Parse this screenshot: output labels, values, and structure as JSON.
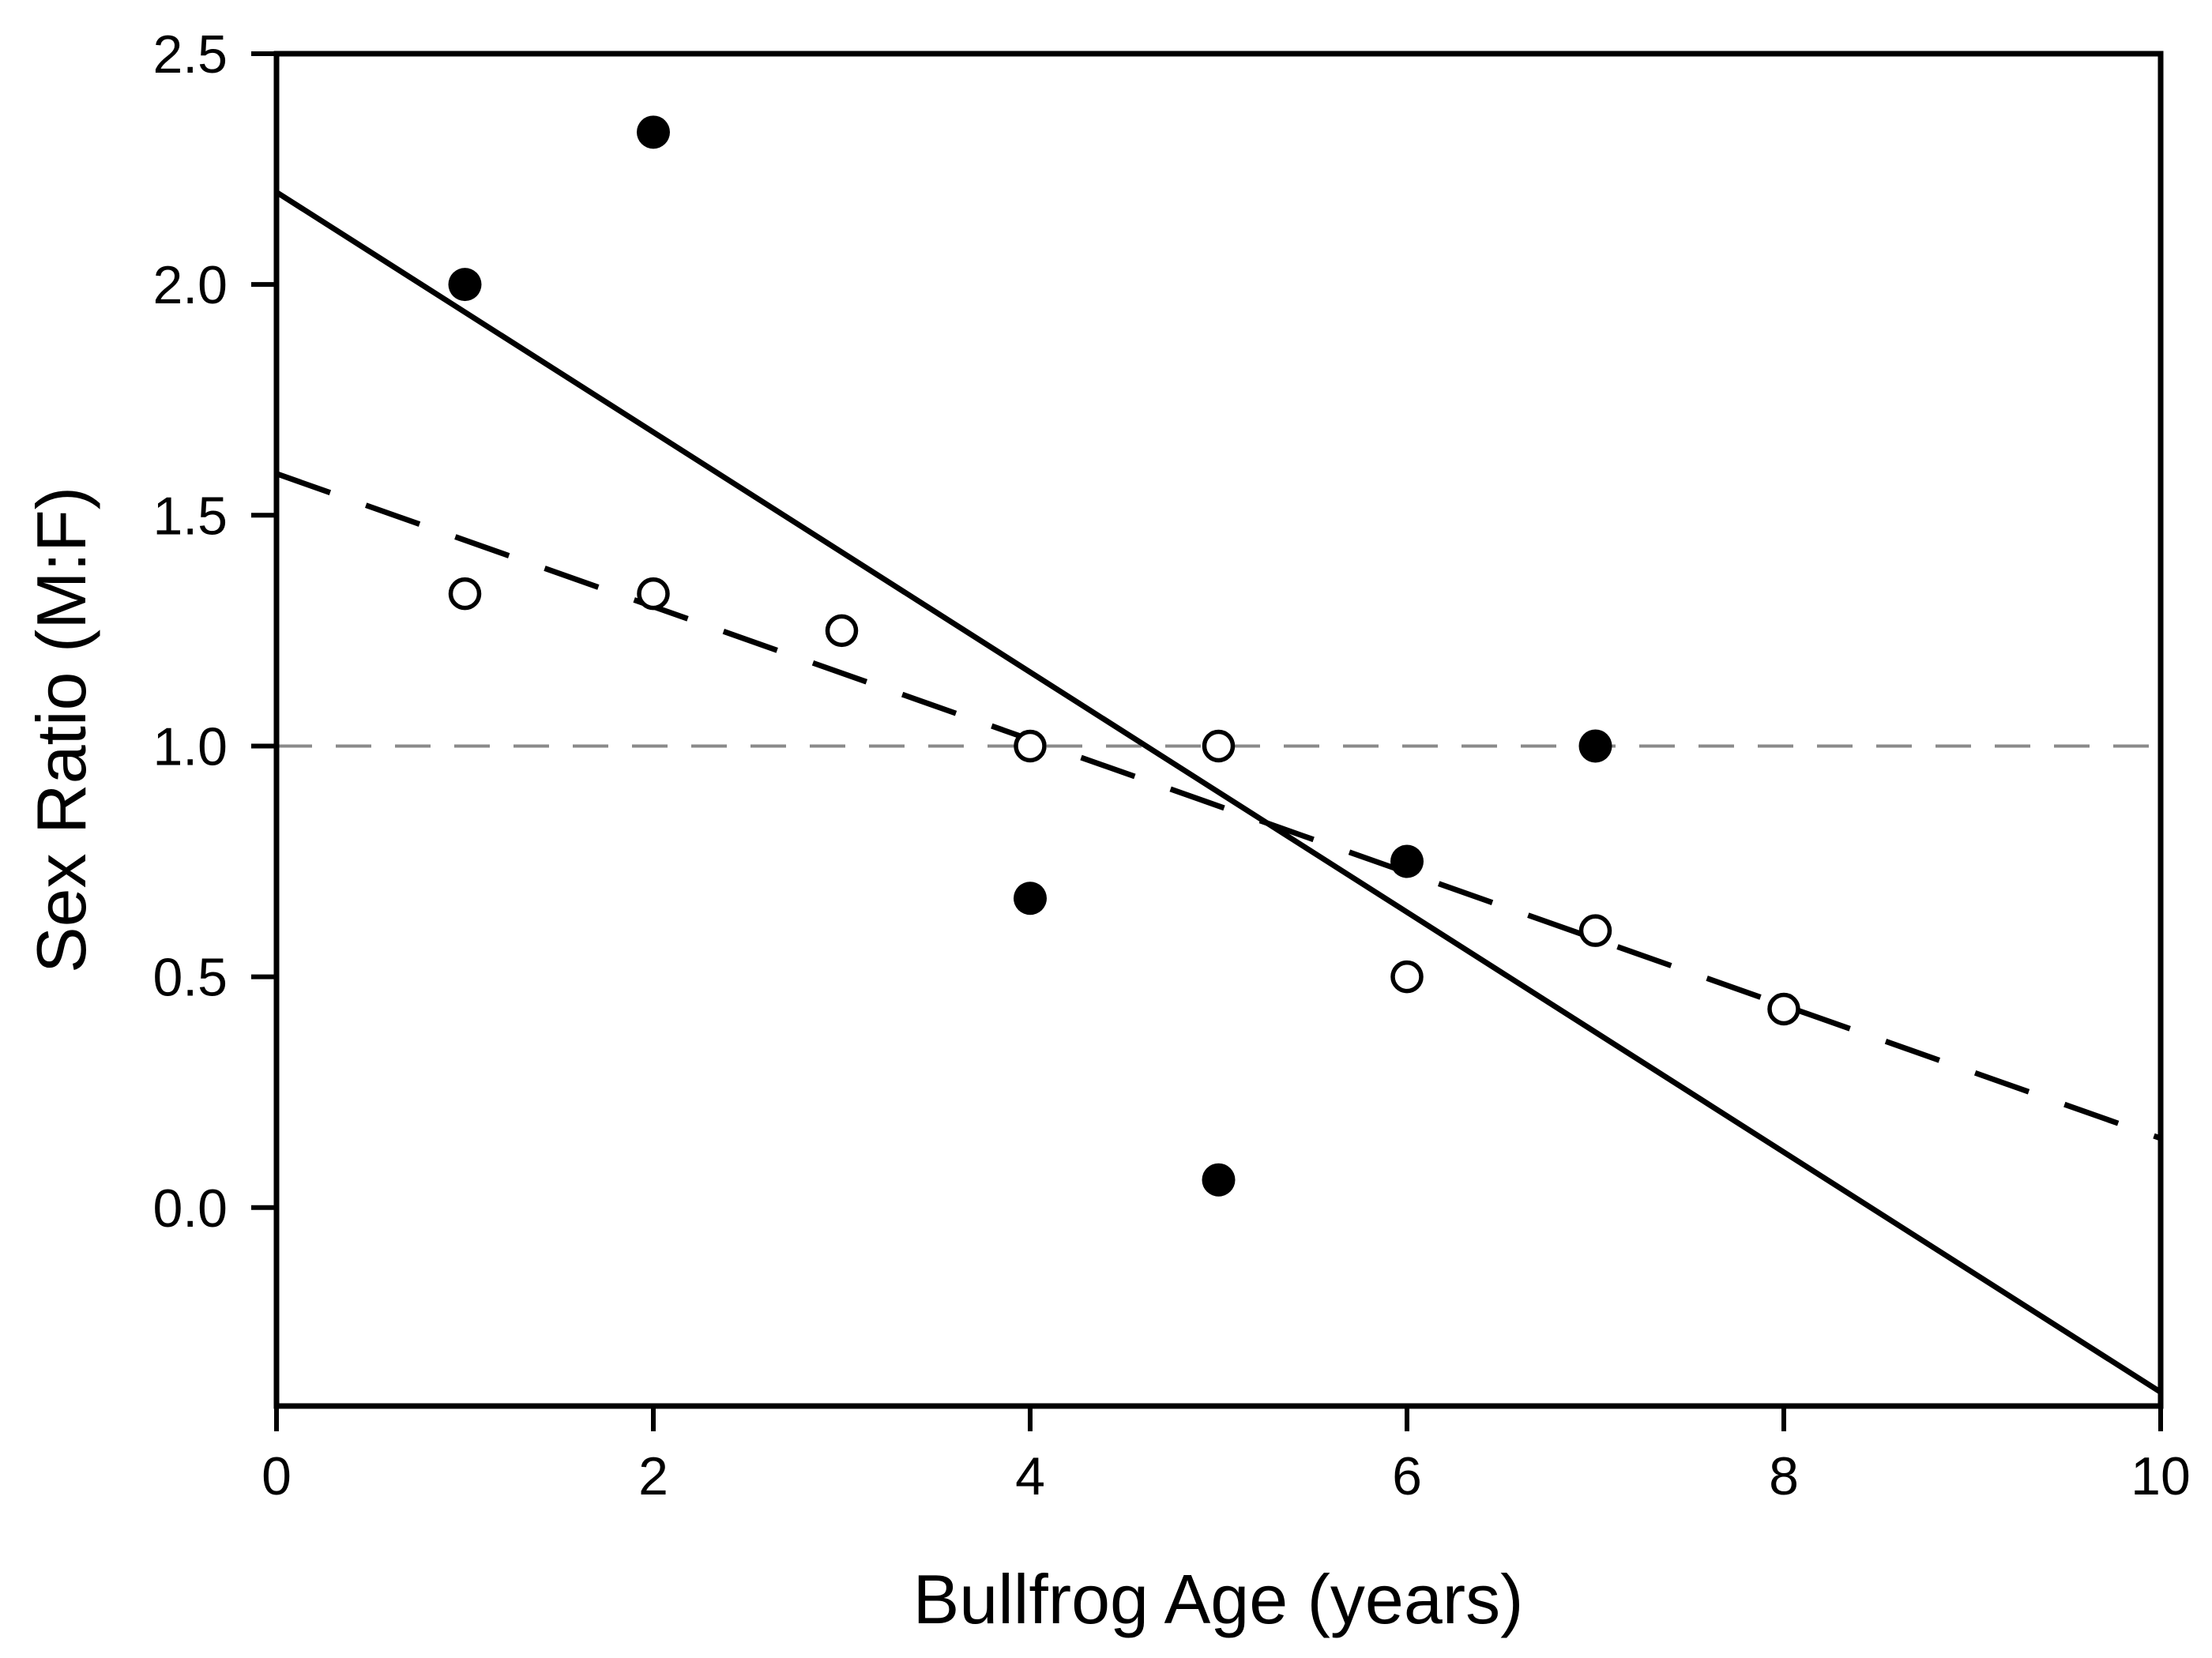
{
  "figure": {
    "background": "#ffffff",
    "frame_color": "#000000"
  },
  "chart_data": {
    "type": "scatter",
    "title": "",
    "xlabel": "Bullfrog Age (years)",
    "ylabel": "Sex Ratio (M:F)",
    "xlim": [
      0,
      10
    ],
    "ylim": [
      -0.43,
      2.5
    ],
    "grid": false,
    "legend_position": "none",
    "x_ticks": [
      {
        "value": 0,
        "label": "0"
      },
      {
        "value": 2,
        "label": "2"
      },
      {
        "value": 4,
        "label": "4"
      },
      {
        "value": 6,
        "label": "6"
      },
      {
        "value": 8,
        "label": "8"
      },
      {
        "value": 10,
        "label": "10"
      }
    ],
    "y_ticks": [
      {
        "value": 0.0,
        "label": "0.0"
      },
      {
        "value": 0.5,
        "label": "0.5"
      },
      {
        "value": 1.0,
        "label": "1.0"
      },
      {
        "value": 1.5,
        "label": "1.5"
      },
      {
        "value": 2.0,
        "label": "2.0"
      },
      {
        "value": 2.5,
        "label": "2.5"
      }
    ],
    "series": [
      {
        "name": "filled-circles",
        "marker": "filled-circle",
        "marker_color": "#000000",
        "points": [
          [
            1,
            2.0
          ],
          [
            2,
            2.33
          ],
          [
            4,
            0.67
          ],
          [
            5,
            0.06
          ],
          [
            6,
            0.75
          ],
          [
            7,
            1.0
          ]
        ]
      },
      {
        "name": "open-circles",
        "marker": "open-circle",
        "marker_color": "#000000",
        "marker_fill": "#ffffff",
        "points": [
          [
            1,
            1.33
          ],
          [
            2,
            1.33
          ],
          [
            3,
            1.25
          ],
          [
            4,
            1.0
          ],
          [
            5,
            1.0
          ],
          [
            6,
            0.5
          ],
          [
            7,
            0.6
          ],
          [
            8,
            0.43
          ]
        ]
      }
    ],
    "lines": [
      {
        "name": "parity-reference-line",
        "style": "fine-dash",
        "color": "#8a8a8a",
        "width": 4,
        "from": [
          0,
          1.0
        ],
        "to": [
          10,
          1.0
        ]
      },
      {
        "name": "dashed-regression-line",
        "style": "long-dash",
        "color": "#000000",
        "width": 7,
        "from": [
          0,
          1.59
        ],
        "to": [
          10,
          0.15
        ]
      },
      {
        "name": "solid-regression-line",
        "style": "solid",
        "color": "#000000",
        "width": 7,
        "from": [
          0,
          2.2
        ],
        "to": [
          10,
          -0.4
        ]
      }
    ]
  }
}
